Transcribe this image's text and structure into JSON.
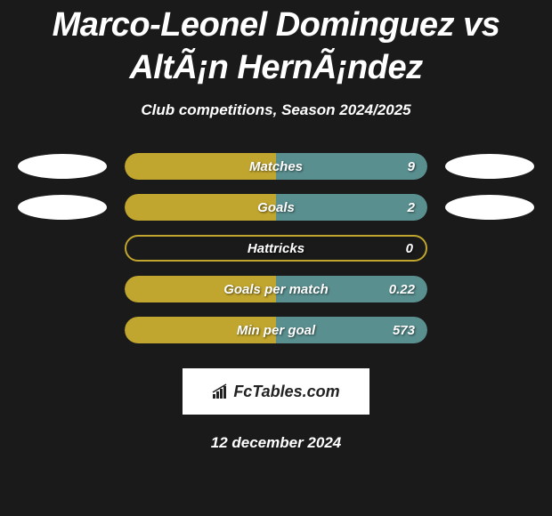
{
  "background_color": "#1a1a1a",
  "title": "Marco-Leonel Dominguez vs AltÃ¡n HernÃ¡ndez",
  "title_fontsize": 38,
  "subtitle": "Club competitions, Season 2024/2025",
  "subtitle_fontsize": 17,
  "date": "12 december 2024",
  "logo_text": "FcTables.com",
  "colors": {
    "left_fill": "#c0a52e",
    "right_fill": "#5a8f8f",
    "bar_empty_bg": "transparent",
    "bar_empty_border": "#c0a52e",
    "text": "#ffffff",
    "ellipse": "#ffffff"
  },
  "rows": [
    {
      "label": "Matches",
      "value": "9",
      "left_pct": 50,
      "right_pct": 50,
      "show_ellipses": true,
      "empty": false
    },
    {
      "label": "Goals",
      "value": "2",
      "left_pct": 50,
      "right_pct": 50,
      "show_ellipses": true,
      "empty": false
    },
    {
      "label": "Hattricks",
      "value": "0",
      "left_pct": 0,
      "right_pct": 0,
      "show_ellipses": false,
      "empty": true
    },
    {
      "label": "Goals per match",
      "value": "0.22",
      "left_pct": 50,
      "right_pct": 50,
      "show_ellipses": false,
      "empty": false
    },
    {
      "label": "Min per goal",
      "value": "573",
      "left_pct": 50,
      "right_pct": 50,
      "show_ellipses": false,
      "empty": false
    }
  ]
}
